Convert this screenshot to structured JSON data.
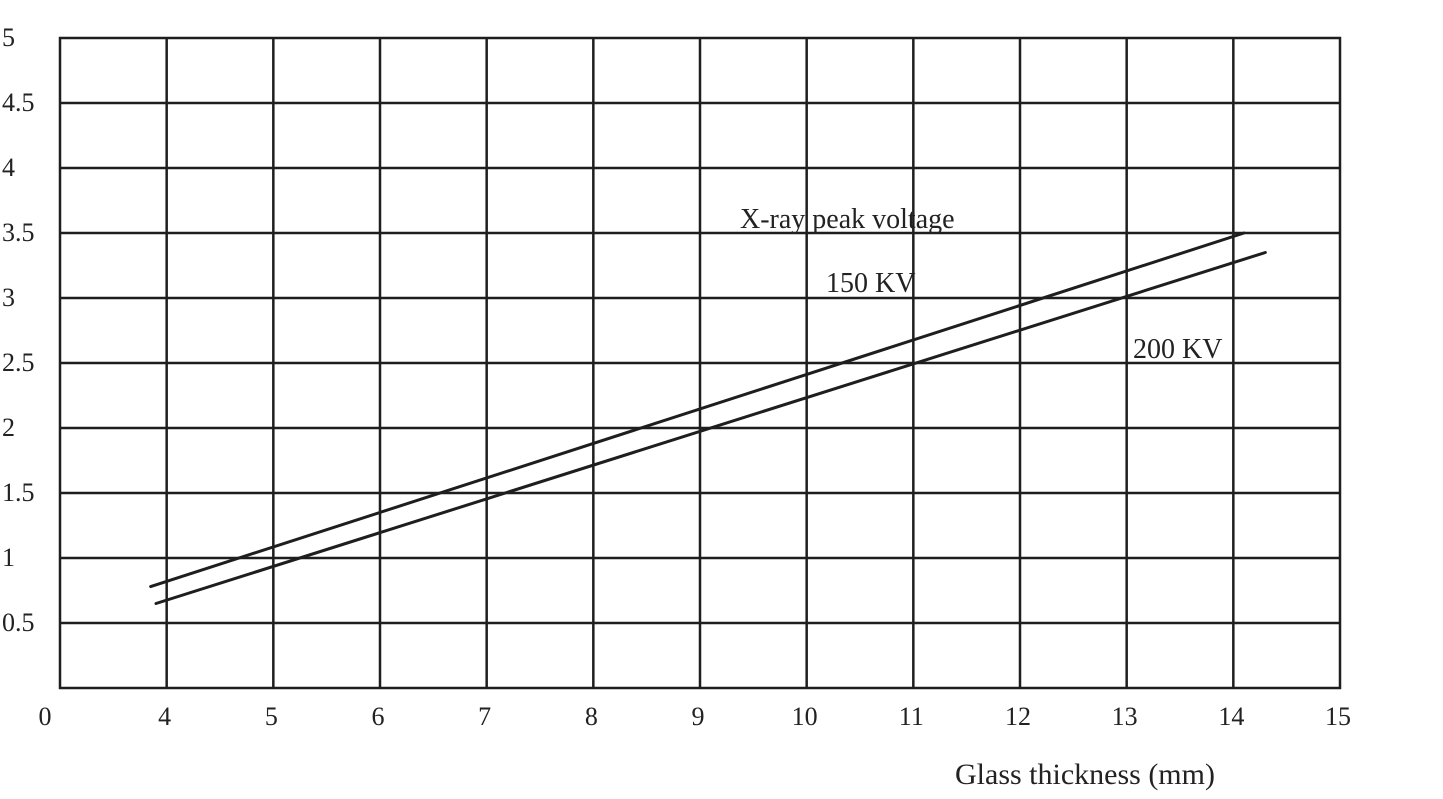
{
  "chart_data": {
    "type": "line",
    "title": "",
    "xlabel": "Glass thickness (mm)",
    "ylabel": "",
    "x_ticks": [
      "0",
      "4",
      "5",
      "6",
      "7",
      "8",
      "9",
      "10",
      "11",
      "12",
      "13",
      "14",
      "15"
    ],
    "y_ticks": [
      "0.5",
      "1",
      "1.5",
      "2",
      "2.5",
      "3",
      "3.5",
      "4",
      "4.5",
      "5"
    ],
    "xlim": [
      3,
      15
    ],
    "ylim": [
      0,
      5
    ],
    "grid": true,
    "annotations": {
      "group_title": "X-ray peak voltage",
      "label_150": "150 KV",
      "label_200": "200 KV"
    },
    "series": [
      {
        "name": "150 KV",
        "x": [
          3.85,
          14.1
        ],
        "y": [
          0.78,
          3.5
        ]
      },
      {
        "name": "200 KV",
        "x": [
          3.9,
          14.3
        ],
        "y": [
          0.65,
          3.35
        ]
      }
    ],
    "colors": {
      "lines": "#1e1e1e",
      "grid": "#1e1e1e",
      "background": "#ffffff"
    }
  }
}
